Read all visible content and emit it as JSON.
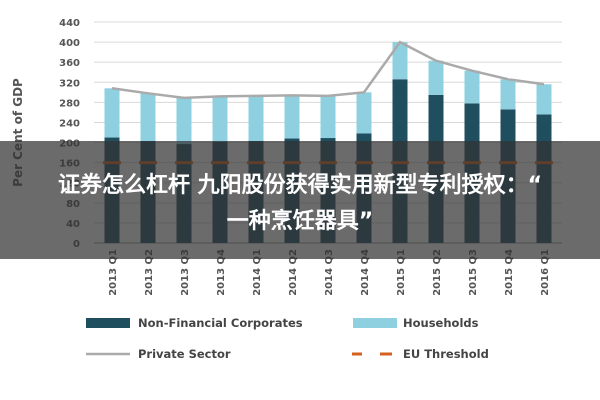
{
  "chart_data": {
    "type": "bar",
    "stacked": true,
    "ylabel": "Per Cent of GDP",
    "ylim": [
      0,
      440
    ],
    "yticks": [
      0,
      40,
      80,
      120,
      160,
      200,
      240,
      280,
      320,
      360,
      400,
      440
    ],
    "grid": true,
    "legend_position": "bottom",
    "categories": [
      "2013 Q1",
      "2013 Q2",
      "2013 Q3",
      "2013 Q4",
      "2014 Q1",
      "2014 Q2",
      "2014 Q3",
      "2014 Q4",
      "2015 Q1",
      "2015 Q2",
      "2015 Q3",
      "2015 Q4",
      "2016 Q1"
    ],
    "series": [
      {
        "name": "Non-Financial Corporates",
        "kind": "bar",
        "color": "#1f4e5f",
        "values": [
          210,
          203,
          197,
          202,
          203,
          208,
          209,
          218,
          326,
          295,
          278,
          266,
          256
        ]
      },
      {
        "name": "Households",
        "kind": "bar",
        "color": "#8fd0e0",
        "values": [
          98,
          95,
          92,
          90,
          90,
          86,
          84,
          82,
          74,
          68,
          65,
          60,
          60
        ]
      },
      {
        "name": "Private Sector",
        "kind": "line",
        "color": "#aaaaaa",
        "values": [
          308,
          298,
          289,
          292,
          293,
          294,
          293,
          300,
          400,
          363,
          343,
          326,
          316
        ]
      },
      {
        "name": "EU Threshold",
        "kind": "dashed",
        "color": "#d4621e",
        "values": [
          160,
          160,
          160,
          160,
          160,
          160,
          160,
          160,
          160,
          160,
          160,
          160,
          160
        ]
      }
    ]
  },
  "overlay": {
    "line1": "证券怎么杠杆 九阳股份获得实用新型专利授权：“",
    "line2": "一种烹饪器具”"
  }
}
